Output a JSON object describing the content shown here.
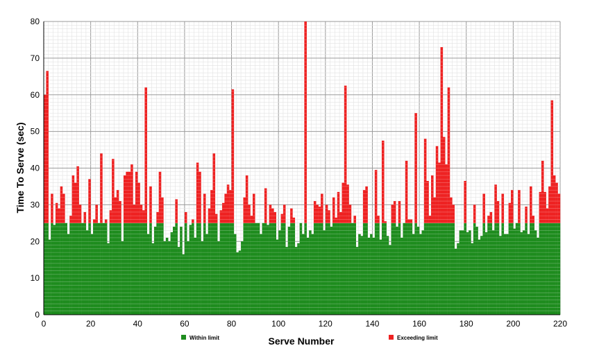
{
  "chart_data": {
    "type": "bar",
    "stacked": true,
    "xlabel": "Serve Number",
    "ylabel": "Time To Serve (sec)",
    "xlim": [
      0,
      220
    ],
    "ylim": [
      0,
      80
    ],
    "xticks": [
      0,
      20,
      40,
      60,
      80,
      100,
      120,
      140,
      160,
      180,
      200,
      220
    ],
    "yticks": [
      0,
      10,
      20,
      30,
      40,
      50,
      60,
      70,
      80
    ],
    "grid": true,
    "legend_position": "bottom",
    "series": [
      {
        "name": "Within limit",
        "color": "#1e8c1e"
      },
      {
        "name": "Exceeding limit",
        "color": "#ee2222"
      }
    ],
    "limit": 25,
    "values": [
      60,
      66.5,
      20.5,
      33,
      24.5,
      30.5,
      29,
      35,
      33,
      25,
      22,
      27,
      38,
      36,
      40.5,
      30,
      25,
      28,
      23,
      37,
      22,
      26,
      30,
      25,
      44,
      25,
      26,
      19.5,
      28.5,
      42.5,
      32,
      34,
      31,
      20,
      38,
      39,
      39,
      41,
      30,
      39,
      36,
      30,
      28.5,
      62,
      22,
      35,
      19.5,
      24,
      28,
      39,
      32,
      20,
      21,
      20,
      22.5,
      24,
      31.5,
      18.5,
      24,
      16.5,
      28,
      20,
      24.5,
      26,
      21,
      41.5,
      39,
      20,
      33,
      22,
      29,
      34,
      44,
      27.5,
      20,
      28.5,
      30.5,
      33,
      35.5,
      34,
      61.5,
      22,
      17,
      17.5,
      20,
      32,
      38,
      30,
      27,
      33,
      25,
      25,
      22,
      25,
      34.5,
      24.5,
      30,
      29,
      28,
      20.5,
      23,
      27.5,
      30,
      18.5,
      24,
      29,
      26.5,
      18.5,
      19.5,
      25,
      22,
      80,
      21,
      23,
      22,
      31,
      30,
      29.5,
      33,
      23,
      30,
      28.5,
      24,
      32,
      26.5,
      33.5,
      28,
      36,
      62.5,
      35.5,
      30,
      25,
      27,
      18.5,
      22,
      21.5,
      34,
      35,
      21,
      22,
      21,
      39.5,
      27,
      20.5,
      47.5,
      25.5,
      21.5,
      19,
      30,
      31,
      24,
      31,
      21,
      25,
      42,
      26,
      26,
      22,
      55,
      24,
      22,
      23,
      48,
      36.5,
      27,
      38,
      32,
      46,
      41.5,
      73,
      48.5,
      41,
      62,
      32,
      30,
      18,
      19.5,
      23,
      23,
      36.5,
      22.5,
      23,
      19.5,
      30,
      24,
      20.5,
      21.5,
      33,
      22.5,
      27,
      28,
      23,
      35.5,
      31,
      21.5,
      33,
      22,
      22,
      30.5,
      34,
      23.5,
      25,
      34,
      22.5,
      23,
      29.5,
      22,
      35,
      27,
      23,
      21,
      33.5,
      42,
      33.5,
      29,
      35,
      58.5,
      38,
      36,
      33
    ]
  },
  "legend": {
    "within_label": "Within limit",
    "exceeding_label": "Exceeding limit"
  }
}
